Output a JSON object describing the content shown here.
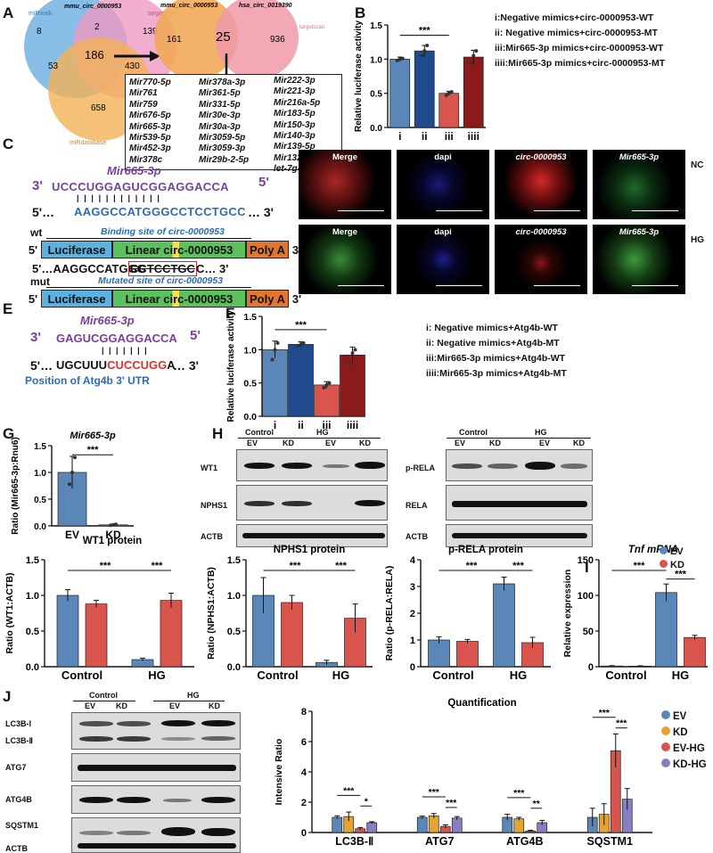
{
  "panels": {
    "A": "A",
    "B": "B",
    "C": "C",
    "D": "D",
    "E": "E",
    "F": "F",
    "G": "G",
    "H": "H",
    "I": "I",
    "J": "J"
  },
  "panelA": {
    "venn1": {
      "set_mirwalk": "miRwalk",
      "set_circ": "mmu_circ_0000953",
      "set_targetscan": "targetscan",
      "set_mirdb": "miRdatabase",
      "n_only_mirwalk": "8",
      "n_only_targetscan": "139",
      "n_only_mirdb": "658",
      "n_walk_target": "2",
      "n_walk_db": "53",
      "n_target_db": "430",
      "n_all": "186"
    },
    "venn2": {
      "set_left": "mmu_circ_0000953",
      "set_right": "hsa_circ_0019390",
      "set_right2": "targetscan",
      "n_left": "161",
      "n_both": "25",
      "n_right": "936"
    },
    "mirs": [
      [
        "Mir770-5p",
        "Mir761",
        "Mir759",
        "Mir676-5p",
        "Mir665-3p",
        "Mir539-5p",
        "Mir452-3p",
        "Mir378c"
      ],
      [
        "Mir378a-3p",
        "Mir361-5p",
        "Mir331-5p",
        "Mir30e-3p",
        "Mir30a-3p",
        "Mir3059-5p",
        "Mir3059-3p",
        "Mir29b-2-5p"
      ],
      [
        "Mir222-3p",
        "Mir221-3p",
        "Mir216a-5p",
        "Mir183-5p",
        "Mir150-3p",
        "Mir140-3p",
        "Mir139-5p",
        "Mir132-3p",
        "let-7g-3p"
      ]
    ]
  },
  "panelB": {
    "chart_data": {
      "type": "bar",
      "categories": [
        "i",
        "ii",
        "iii",
        "iiii"
      ],
      "values": [
        1.0,
        1.12,
        0.5,
        1.03
      ],
      "errors": [
        0.03,
        0.08,
        0.03,
        0.1
      ],
      "points": [
        [
          0.98,
          1.0,
          1.01
        ],
        [
          1.05,
          1.12,
          1.2
        ],
        [
          0.47,
          0.5,
          0.52
        ],
        [
          0.93,
          1.05,
          1.12
        ]
      ],
      "colors": [
        "#5b86b8",
        "#1f4a8c",
        "#d9544d",
        "#8b1a1a"
      ],
      "ylabel": "Relative luciferase activity",
      "ylim": [
        0,
        1.5
      ],
      "yticks": [
        "0.0",
        "0.5",
        "1.0",
        "1.5"
      ],
      "sig": "***"
    },
    "legend": [
      "i:Negative mimics+circ-0000953-WT",
      "ii: Negative mimics+circ-0000953-MT",
      "iii:Mir665-3p mimics+circ-0000953-WT",
      "iiii:Mir665-3p mimics+circ-0000953-MT"
    ]
  },
  "panelC": {
    "mirname": "Mir665-3p",
    "p3": "3'",
    "p5": "5'",
    "mirseq": "UCCCUGGAGUCGGAGGACCA",
    "p5b": "5'…",
    "targetseq": "AAGGCCATGGGCCTCCTGCC",
    "p3b": "… 3'",
    "bars": "| | | | | | | | | | | |",
    "wt": "wt",
    "mut": "mut",
    "binding": "Binding site of circ-0000953",
    "mutated": "Mutated site of circ-0000953",
    "mutseq_a": "5'…AAGGCCATGGG",
    "mutseq_b": "CCTCCTGC",
    "mutseq_c": "C… 3'",
    "construct": {
      "p5": "5'",
      "luc": "Luciferase",
      "linear": "Linear circ-0000953",
      "polya": "Poly A",
      "p3": "3'"
    }
  },
  "panelD": {
    "rows": [
      "NC",
      "HG"
    ],
    "cols": [
      "Merge",
      "dapi",
      "circ-0000953",
      "Mir665-3p"
    ]
  },
  "panelE": {
    "mirname": "Mir665-3p",
    "p3": "3'",
    "p5": "5'",
    "mirseq": "GAGUCGGAGGACCA",
    "p5b": "5'…",
    "utrA": "UGCUUU",
    "utrB": "CUCCUGG",
    "utrC": "A",
    "p3b": "… 3'",
    "bars": "| | | | | | |",
    "caption": "Position of Atg4b 3' UTR"
  },
  "panelF": {
    "chart_data": {
      "type": "bar",
      "categories": [
        "i",
        "ii",
        "iii",
        "iiii"
      ],
      "values": [
        1.0,
        1.08,
        0.47,
        0.92
      ],
      "errors": [
        0.13,
        0.04,
        0.05,
        0.12
      ],
      "points": [
        [
          0.85,
          1.0,
          1.1
        ],
        [
          1.06,
          1.08,
          1.1
        ],
        [
          0.43,
          0.47,
          0.5
        ],
        [
          0.8,
          0.95,
          1.0
        ]
      ],
      "colors": [
        "#5b86b8",
        "#1f4a8c",
        "#d9544d",
        "#8b1a1a"
      ],
      "ylabel": "Relative luciferase activity",
      "ylim": [
        0,
        1.5
      ],
      "yticks": [
        "0.0",
        "0.5",
        "1.0",
        "1.5"
      ],
      "sig": "***"
    },
    "legend": [
      "i: Negative mimics+Atg4b-WT",
      "ii: Negative mimics+Atg4b-MT",
      "iii:Mir665-3p mimics+Atg4b-WT",
      "iiii:Mir665-3p mimics+Atg4b-MT"
    ]
  },
  "panelG": {
    "chart_data": {
      "type": "bar",
      "title": "Mir665-3p",
      "categories": [
        "EV",
        "KD"
      ],
      "values": [
        1.0,
        0.02
      ],
      "errors": [
        0.3,
        0.01
      ],
      "points": [
        [
          0.78,
          1.0,
          1.28
        ],
        [
          0.01,
          0.02,
          0.03
        ]
      ],
      "colors": [
        "#5b86b8",
        "#5b86b8"
      ],
      "ylabel": "Ratio (Mir665-3p:Rnu6)",
      "ylim": [
        0,
        1.5
      ],
      "yticks": [
        "0.0",
        "0.5",
        "1.0",
        "1.5"
      ],
      "sig": "***"
    }
  },
  "panelH": {
    "groups": [
      "Control",
      "HG"
    ],
    "lanes": [
      "EV",
      "KD",
      "EV",
      "KD"
    ],
    "left_rows": [
      "WT1",
      "NPHS1",
      "ACTB"
    ],
    "right_rows": [
      "p-RELA",
      "RELA",
      "ACTB"
    ]
  },
  "quant": {
    "legend": [
      "EV",
      "KD"
    ],
    "legend_colors": [
      "#5b86b8",
      "#d9544d"
    ],
    "wt1": {
      "chart_data": {
        "type": "bar",
        "title": "WT1 protein",
        "categories": [
          "Control",
          "HG"
        ],
        "series": [
          {
            "name": "EV",
            "values": [
              1.0,
              0.1
            ]
          },
          {
            "name": "KD",
            "values": [
              0.88,
              0.93
            ]
          }
        ],
        "errors": [
          [
            0.08,
            0.02
          ],
          [
            0.05,
            0.1
          ]
        ],
        "ylabel": "Ratio (WT1:ACTB)",
        "ylim": [
          0,
          1.5
        ],
        "yticks": [
          "0.0",
          "0.5",
          "1.0",
          "1.5"
        ],
        "sig": [
          "***",
          "***"
        ]
      }
    },
    "nphs1": {
      "chart_data": {
        "type": "bar",
        "title": "NPHS1 protein",
        "categories": [
          "Control",
          "HG"
        ],
        "series": [
          {
            "name": "EV",
            "values": [
              1.0,
              0.06
            ]
          },
          {
            "name": "KD",
            "values": [
              0.9,
              0.68
            ]
          }
        ],
        "errors": [
          [
            0.25,
            0.03
          ],
          [
            0.1,
            0.2
          ]
        ],
        "ylabel": "Ratio (NPHS1:ACTB)",
        "ylim": [
          0,
          1.5
        ],
        "yticks": [
          "0.0",
          "0.5",
          "1.0",
          "1.5"
        ],
        "sig": [
          "***",
          "***"
        ]
      }
    },
    "prela": {
      "chart_data": {
        "type": "bar",
        "title": "p-RELA protein",
        "categories": [
          "Control",
          "HG"
        ],
        "series": [
          {
            "name": "EV",
            "values": [
              1.0,
              3.1
            ]
          },
          {
            "name": "KD",
            "values": [
              0.95,
              0.9
            ]
          }
        ],
        "errors": [
          [
            0.12,
            0.25
          ],
          [
            0.07,
            0.2
          ]
        ],
        "ylabel": "Ratio (p-RELA:RELA)",
        "ylim": [
          0,
          4
        ],
        "yticks": [
          "0",
          "1",
          "2",
          "3",
          "4"
        ],
        "sig": [
          "***",
          "***"
        ]
      }
    },
    "tnf": {
      "chart_data": {
        "type": "bar",
        "title": "Tnf mRNA",
        "categories": [
          "Control",
          "HG"
        ],
        "series": [
          {
            "name": "EV",
            "values": [
              1.0,
              104
            ]
          },
          {
            "name": "KD",
            "values": [
              0.8,
              41
            ]
          }
        ],
        "errors": [
          [
            0.5,
            12
          ],
          [
            0.5,
            3
          ]
        ],
        "ylabel": "Relative expression",
        "ylim": [
          0,
          150
        ],
        "yticks": [
          "0",
          "50",
          "100",
          "150"
        ],
        "sig": [
          "***",
          "***"
        ]
      }
    }
  },
  "panelJ": {
    "groups": [
      "Control",
      "HG"
    ],
    "lanes": [
      "EV",
      "KD",
      "EV",
      "KD"
    ],
    "rows": [
      "LC3B-Ⅰ",
      "LC3B-Ⅱ",
      "ATG7",
      "ATG4B",
      "SQSTM1",
      "ACTB"
    ],
    "chart_data": {
      "type": "bar",
      "title": "Quantification",
      "categories": [
        "LC3B-Ⅱ",
        "ATG7",
        "ATG4B",
        "SQSTM1"
      ],
      "series": [
        {
          "name": "EV",
          "values": [
            1.0,
            1.0,
            1.0,
            1.0
          ]
        },
        {
          "name": "KD",
          "values": [
            1.05,
            1.1,
            0.9,
            1.2
          ]
        },
        {
          "name": "EV-HG",
          "values": [
            0.25,
            0.4,
            0.1,
            5.4
          ]
        },
        {
          "name": "KD-HG",
          "values": [
            0.65,
            0.95,
            0.65,
            2.2
          ]
        }
      ],
      "errors": [
        [
          0.1,
          0.08,
          0.2,
          0.6
        ],
        [
          0.3,
          0.15,
          0.1,
          0.7
        ],
        [
          0.08,
          0.1,
          0.05,
          1.1
        ],
        [
          0.06,
          0.1,
          0.15,
          0.7
        ]
      ],
      "colors": [
        "#5b86b8",
        "#e3a433",
        "#d9544d",
        "#8b7ec0"
      ],
      "ylabel": "Intensive Ratio",
      "ylim": [
        0,
        8
      ],
      "yticks": [
        "0",
        "2",
        "4",
        "6",
        "8"
      ],
      "sig": [
        [
          "***",
          "*"
        ],
        [
          "***",
          "***"
        ],
        [
          "***",
          "**"
        ],
        [
          "***",
          "***"
        ]
      ]
    }
  }
}
